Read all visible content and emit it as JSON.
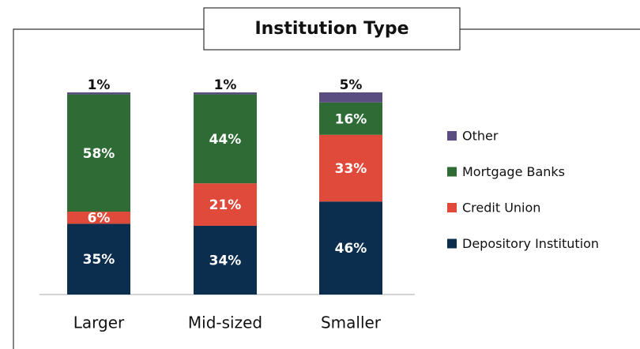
{
  "chart_data": {
    "type": "stacked_bar",
    "title": "Institution Type",
    "categories": [
      "Larger",
      "Mid-sized",
      "Smaller"
    ],
    "ylim": [
      0,
      100
    ],
    "series": [
      {
        "name": "Depository Institution",
        "color": "#0b2d4e",
        "values": [
          35,
          34,
          46
        ],
        "value_labels": [
          "35%",
          "34%",
          "46%"
        ]
      },
      {
        "name": "Credit Union",
        "color": "#e04a3a",
        "values": [
          6,
          21,
          33
        ],
        "value_labels": [
          "6%",
          "21%",
          "33%"
        ]
      },
      {
        "name": "Mortgage Banks",
        "color": "#2e6b35",
        "values": [
          58,
          44,
          16
        ],
        "value_labels": [
          "58%",
          "44%",
          "16%"
        ]
      },
      {
        "name": "Other",
        "color": "#5a4d80",
        "values": [
          1,
          1,
          5
        ],
        "value_labels": [
          "1%",
          "1%",
          "5%"
        ]
      }
    ]
  }
}
